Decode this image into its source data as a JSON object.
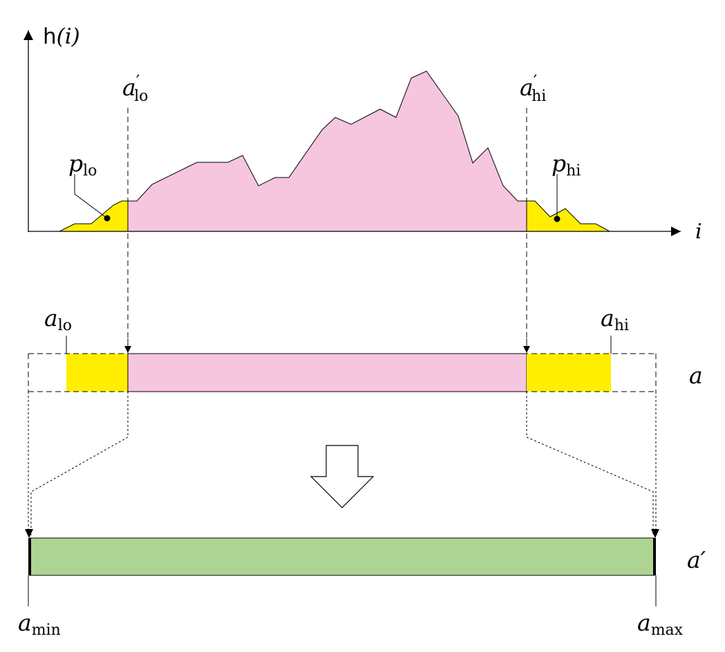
{
  "axes": {
    "y_func": "h",
    "y_arg": "(i)",
    "x": "i"
  },
  "labels": {
    "a_lo_prime": {
      "base": "a",
      "prime": "′",
      "sub": "lo"
    },
    "a_hi_prime": {
      "base": "a",
      "prime": "′",
      "sub": "hi"
    },
    "p_lo": {
      "base": "p",
      "sub": "lo"
    },
    "p_hi": {
      "base": "p",
      "sub": "hi"
    },
    "a_lo": {
      "base": "a",
      "sub": "lo"
    },
    "a_hi": {
      "base": "a",
      "sub": "hi"
    },
    "a_bar": "a",
    "a_prime_bar": "a′",
    "a_min": {
      "base": "a",
      "sub": "min"
    },
    "a_max": {
      "base": "a",
      "sub": "max"
    }
  },
  "colors": {
    "pink": "#f5c6de",
    "yellow": "#ffee00",
    "green": "#aed494",
    "stroke": "#000000"
  }
}
